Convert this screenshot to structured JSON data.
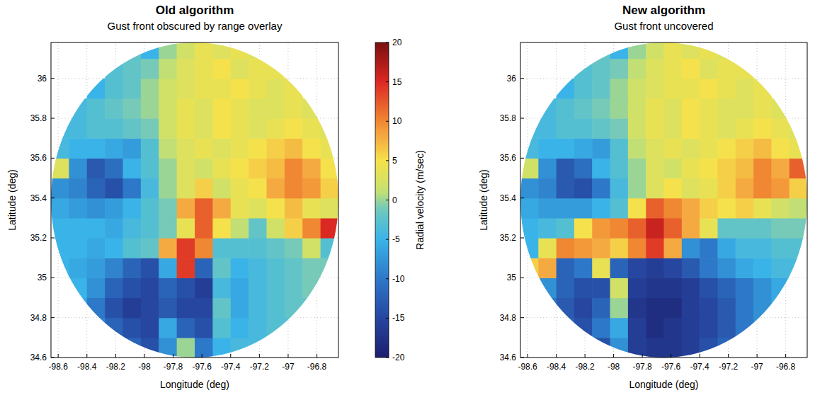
{
  "chart_data": [
    {
      "type": "heatmap",
      "title": "Old algorithm",
      "subtitle": "Gust front obscured by range overlay",
      "x_label": "Longitude (deg)",
      "y_label": "Latitude (deg)",
      "xlim": [
        -98.65,
        -96.65
      ],
      "ylim": [
        34.6,
        36.18
      ],
      "xticks": [
        -98.6,
        -98.4,
        -98.2,
        -98,
        -97.8,
        -97.6,
        -97.4,
        -97.2,
        -97,
        -96.8
      ],
      "yticks": [
        34.6,
        34.8,
        35,
        35.2,
        35.4,
        35.6,
        35.8,
        36
      ],
      "grid": true,
      "x": [
        -98.5875,
        -98.4625,
        -98.3375,
        -98.2125,
        -98.0875,
        -97.9625,
        -97.8375,
        -97.7125,
        -97.5875,
        -97.4625,
        -97.3375,
        -97.2125,
        -97.0875,
        -96.9625,
        -96.8375,
        -96.7125
      ],
      "y": [
        34.65,
        34.75,
        34.85,
        34.95,
        35.05,
        35.15,
        35.25,
        35.35,
        35.45,
        35.55,
        35.65,
        35.75,
        35.85,
        35.95,
        36.05,
        36.15
      ],
      "cells": [
        [
          null,
          null,
          null,
          null,
          -12,
          -14,
          -8,
          0,
          -10,
          -5,
          -4,
          -4,
          null,
          null,
          null,
          null
        ],
        [
          null,
          null,
          -9,
          -12,
          -14,
          -15,
          -6,
          -12,
          -14,
          -3,
          -5,
          -4,
          -3,
          -3,
          null,
          null
        ],
        [
          null,
          -6,
          -10,
          -14,
          -16,
          -15,
          -13,
          -15,
          -15,
          -2,
          -6,
          -4,
          -3,
          -2,
          -2,
          null
        ],
        [
          null,
          -5,
          -8,
          -12,
          -14,
          -15,
          -12,
          -14,
          -16,
          -4,
          -6,
          -4,
          -3,
          -2,
          -1,
          null
        ],
        [
          -5,
          -6,
          -7,
          -9,
          -12,
          -14,
          -6,
          14,
          -12,
          -2,
          -5,
          -4,
          -3,
          -2,
          -1,
          -1
        ],
        [
          -5,
          -5,
          -6,
          -5,
          -3,
          -2,
          8,
          14,
          10,
          -3,
          -3,
          -3,
          -2,
          -1,
          2,
          -3
        ],
        [
          -5,
          -5,
          -5,
          -6,
          -4,
          -3,
          -1,
          4,
          12,
          5,
          1,
          -2,
          2,
          6,
          10,
          15
        ],
        [
          -6,
          -7,
          -8,
          -7,
          -5,
          -3,
          -1,
          8,
          12,
          8,
          4,
          3,
          5,
          7,
          4,
          3
        ],
        [
          -8,
          -9,
          -12,
          -14,
          -10,
          -4,
          0,
          3,
          6,
          2,
          4,
          5,
          8,
          10,
          9,
          6
        ],
        [
          3,
          -8,
          -13,
          -11,
          -5,
          -3,
          0,
          3,
          2,
          4,
          5,
          6,
          7,
          10,
          8,
          5
        ],
        [
          -4,
          -5,
          -5,
          -6,
          -7,
          -3,
          1,
          3,
          4,
          3,
          4,
          5,
          6,
          7,
          5,
          4
        ],
        [
          -4,
          -4,
          -3,
          -3,
          -2,
          -1,
          2,
          4,
          3,
          5,
          4,
          3,
          4,
          5,
          4,
          3
        ],
        [
          null,
          -4,
          -3,
          -2,
          -1,
          0,
          2,
          4,
          3,
          5,
          4,
          3,
          3,
          4,
          3,
          null
        ],
        [
          null,
          null,
          -5,
          -3,
          -2,
          0,
          2,
          3,
          4,
          4,
          5,
          4,
          3,
          4,
          null,
          null
        ],
        [
          null,
          null,
          null,
          -3,
          -2,
          -1,
          1,
          3,
          4,
          5,
          3,
          4,
          4,
          null,
          null,
          null
        ],
        [
          null,
          null,
          null,
          null,
          -2,
          -5,
          0,
          2,
          4,
          3,
          4,
          3,
          null,
          null,
          null,
          null
        ]
      ],
      "color_label": "Radial velocity (m/sec)",
      "color_range": [
        -20,
        20
      ],
      "color_ticks": [
        20,
        15,
        10,
        5,
        0,
        -5,
        -10,
        -15,
        -20
      ]
    },
    {
      "type": "heatmap",
      "title": "New algorithm",
      "subtitle": "Gust front uncovered",
      "x_label": "Longitude (deg)",
      "y_label": "Latitude (deg)",
      "xlim": [
        -98.65,
        -96.65
      ],
      "ylim": [
        34.6,
        36.18
      ],
      "xticks": [
        -98.6,
        -98.4,
        -98.2,
        -98,
        -97.8,
        -97.6,
        -97.4,
        -97.2,
        -97,
        -96.8
      ],
      "yticks": [
        34.6,
        34.8,
        35,
        35.2,
        35.4,
        35.6,
        35.8,
        36
      ],
      "grid": true,
      "x": [
        -98.5875,
        -98.4625,
        -98.3375,
        -98.2125,
        -98.0875,
        -97.9625,
        -97.8375,
        -97.7125,
        -97.5875,
        -97.4625,
        -97.3375,
        -97.2125,
        -97.0875,
        -96.9625,
        -96.8375,
        -96.7125
      ],
      "y": [
        34.65,
        34.75,
        34.85,
        34.95,
        35.05,
        35.15,
        35.25,
        35.35,
        35.45,
        35.55,
        35.65,
        35.75,
        35.85,
        35.95,
        36.05,
        36.15
      ],
      "cells": [
        [
          null,
          null,
          null,
          null,
          -14,
          -8,
          -16,
          -17,
          -17,
          -16,
          -14,
          -12,
          null,
          null,
          null,
          null
        ],
        [
          null,
          null,
          -12,
          -14,
          -10,
          -6,
          -16,
          -18,
          -17,
          -16,
          -15,
          -13,
          -10,
          -8,
          null,
          null
        ],
        [
          null,
          -10,
          -13,
          -15,
          -12,
          0,
          -17,
          -18,
          -18,
          -16,
          -15,
          -13,
          -10,
          -8,
          -6,
          null
        ],
        [
          null,
          -8,
          -12,
          -14,
          -14,
          2,
          -16,
          -17,
          -17,
          -16,
          -14,
          -12,
          -10,
          -8,
          -6,
          null
        ],
        [
          6,
          8,
          -12,
          -10,
          4,
          -12,
          -15,
          -16,
          -15,
          -13,
          -10,
          -8,
          -6,
          -5,
          -4,
          -4
        ],
        [
          -5,
          4,
          10,
          9,
          8,
          6,
          10,
          14,
          8,
          -8,
          -10,
          -6,
          -4,
          -4,
          -3,
          -3
        ],
        [
          -5,
          -4,
          -3,
          5,
          9,
          10,
          12,
          16,
          12,
          8,
          4,
          -2,
          -2,
          -2,
          -1,
          -1
        ],
        [
          -6,
          -7,
          -7,
          -7,
          -5,
          -3,
          5,
          12,
          10,
          8,
          6,
          5,
          6,
          4,
          2,
          1
        ],
        [
          -8,
          -9,
          -13,
          -14,
          -10,
          -4,
          0,
          3,
          5,
          3,
          4,
          6,
          8,
          10,
          9,
          6
        ],
        [
          2,
          -8,
          -13,
          -11,
          -5,
          -3,
          0,
          3,
          2,
          4,
          5,
          6,
          7,
          10,
          8,
          12
        ],
        [
          -4,
          -5,
          -5,
          -6,
          -7,
          -3,
          1,
          3,
          4,
          3,
          4,
          5,
          6,
          7,
          5,
          4
        ],
        [
          -4,
          -4,
          -3,
          -3,
          -2,
          -1,
          2,
          4,
          3,
          5,
          4,
          3,
          4,
          5,
          4,
          3
        ],
        [
          null,
          -4,
          -3,
          -2,
          -1,
          0,
          2,
          4,
          3,
          5,
          4,
          3,
          3,
          4,
          3,
          null
        ],
        [
          null,
          null,
          -5,
          -3,
          -2,
          0,
          2,
          3,
          4,
          4,
          5,
          4,
          3,
          4,
          null,
          null
        ],
        [
          null,
          null,
          null,
          -3,
          -2,
          -1,
          1,
          3,
          4,
          5,
          3,
          4,
          4,
          null,
          null,
          null
        ],
        [
          null,
          null,
          null,
          null,
          -2,
          -5,
          0,
          2,
          4,
          3,
          4,
          3,
          null,
          null,
          null,
          null
        ]
      ]
    }
  ]
}
